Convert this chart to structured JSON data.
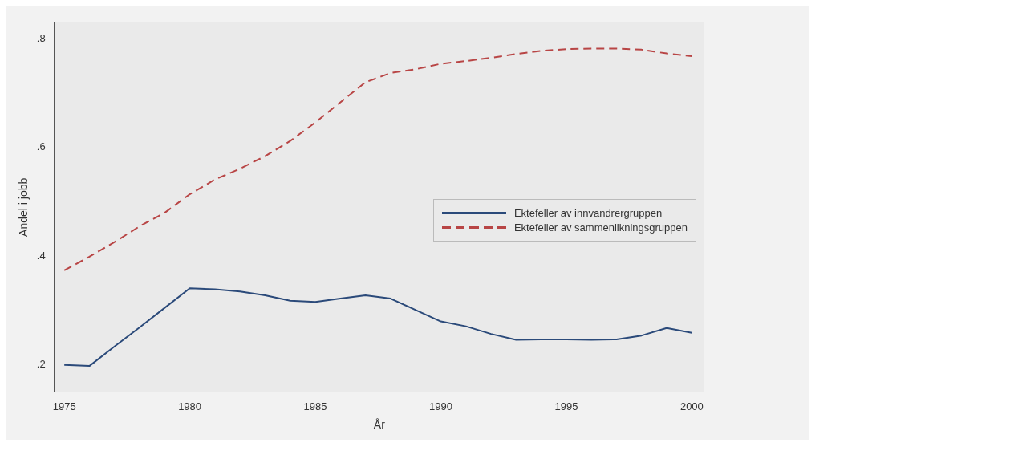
{
  "chart_data": {
    "type": "line",
    "xlabel": "År",
    "ylabel": "Andel i jobb",
    "x": [
      1975,
      1976,
      1977,
      1978,
      1979,
      1980,
      1981,
      1982,
      1983,
      1984,
      1985,
      1986,
      1987,
      1988,
      1989,
      1990,
      1991,
      1992,
      1993,
      1994,
      1995,
      1996,
      1997,
      1998,
      1999,
      2000
    ],
    "series": [
      {
        "name": "Ektefeller av innvandrergruppen",
        "color": "#2b4a7a",
        "line_style": "solid",
        "values": [
          0.2,
          0.198,
          0.234,
          0.269,
          0.305,
          0.341,
          0.339,
          0.335,
          0.328,
          0.318,
          0.316,
          0.322,
          0.328,
          0.322,
          0.301,
          0.28,
          0.271,
          0.257,
          0.246,
          0.247,
          0.247,
          0.246,
          0.247,
          0.254,
          0.268,
          0.259
        ]
      },
      {
        "name": "Ektefeller av sammenlikningsgruppen",
        "color": "#b84545",
        "line_style": "dashed",
        "values": [
          0.374,
          0.399,
          0.426,
          0.455,
          0.48,
          0.514,
          0.541,
          0.561,
          0.584,
          0.612,
          0.646,
          0.683,
          0.72,
          0.737,
          0.744,
          0.754,
          0.759,
          0.765,
          0.772,
          0.778,
          0.781,
          0.782,
          0.782,
          0.78,
          0.773,
          0.768
        ]
      }
    ],
    "xlim": [
      1974.6,
      2000.5
    ],
    "xticks": [
      1975,
      1980,
      1985,
      1990,
      1995,
      2000
    ],
    "ylim": [
      0.15,
      0.83
    ],
    "yticks": [
      {
        "value": 0.2,
        "label": ".2"
      },
      {
        "value": 0.4,
        "label": ".4"
      },
      {
        "value": 0.6,
        "label": ".6"
      },
      {
        "value": 0.8,
        "label": ".8"
      }
    ],
    "grid": false,
    "legend": "right",
    "marker": "none"
  }
}
